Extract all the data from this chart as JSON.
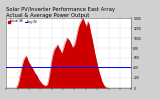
{
  "title": "Solar PV/Inverter Performance East Array\nActual & Average Power Output",
  "title_fontsize": 3.8,
  "background_color": "#d0d0d0",
  "plot_bg_color": "#ffffff",
  "grid_color": "#aaaaaa",
  "bar_color": "#cc0000",
  "avg_line_color": "#0000ff",
  "avg_line_value": 0.3,
  "ylim": [
    0,
    1.0
  ],
  "ytick_labels": [
    "1400",
    "1200",
    "1000",
    "800",
    "600",
    "400",
    "200",
    "0"
  ],
  "ytick_positions": [
    1.0,
    0.857,
    0.714,
    0.571,
    0.429,
    0.286,
    0.143,
    0.0
  ],
  "legend_actual": "Actual (W)",
  "legend_avg": "Avg (W)",
  "data_values": [
    0.0,
    0.0,
    0.0,
    0.0,
    0.0,
    0.0,
    0.0,
    0.0,
    0.0,
    0.0,
    0.02,
    0.05,
    0.1,
    0.18,
    0.25,
    0.32,
    0.38,
    0.42,
    0.44,
    0.46,
    0.42,
    0.38,
    0.35,
    0.33,
    0.3,
    0.28,
    0.25,
    0.22,
    0.2,
    0.18,
    0.15,
    0.12,
    0.1,
    0.08,
    0.06,
    0.05,
    0.04,
    0.03,
    0.04,
    0.05,
    0.1,
    0.18,
    0.28,
    0.38,
    0.46,
    0.52,
    0.56,
    0.58,
    0.6,
    0.62,
    0.58,
    0.55,
    0.52,
    0.5,
    0.55,
    0.6,
    0.65,
    0.68,
    0.72,
    0.7,
    0.68,
    0.65,
    0.62,
    0.58,
    0.6,
    0.62,
    0.68,
    0.75,
    0.82,
    0.88,
    0.92,
    0.95,
    0.98,
    1.0,
    0.96,
    0.92,
    0.88,
    0.92,
    0.95,
    0.9,
    0.82,
    0.75,
    0.68,
    0.6,
    0.52,
    0.45,
    0.38,
    0.32,
    0.25,
    0.2,
    0.15,
    0.1,
    0.07,
    0.04,
    0.02,
    0.01,
    0.01,
    0.0,
    0.0,
    0.0,
    0.0,
    0.0,
    0.0,
    0.0,
    0.0,
    0.0,
    0.0,
    0.0,
    0.0,
    0.0,
    0.0,
    0.0,
    0.0,
    0.0,
    0.0,
    0.0,
    0.0,
    0.0,
    0.0,
    0.0
  ],
  "num_xticks": 12,
  "xtick_labels": [
    "",
    "",
    "",
    "",
    "",
    "",
    "",
    "",
    "",
    "",
    "",
    ""
  ]
}
